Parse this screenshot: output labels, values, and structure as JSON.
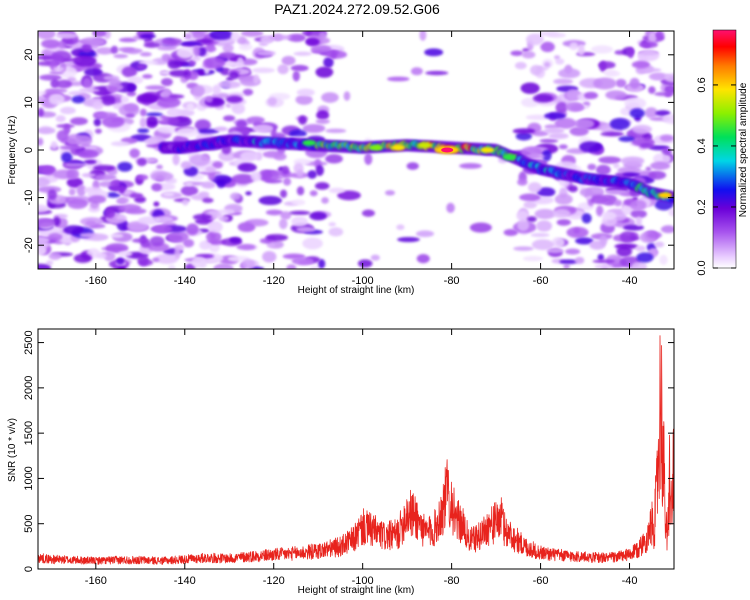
{
  "figure": {
    "title": "PAZ1.2024.272.09.52.G06"
  },
  "chart_data": [
    {
      "type": "heatmap",
      "xlabel": "Height of straight line (km)",
      "ylabel": "Frequency (Hz)",
      "xlim": [
        -173,
        -30
      ],
      "ylim": [
        -25,
        25
      ],
      "x_ticks": [
        -160,
        -140,
        -120,
        -100,
        -80,
        -60,
        -40
      ],
      "y_ticks": [
        -20,
        -10,
        0,
        10,
        20
      ],
      "colorbar": {
        "label": "Normalized spectral amplitude",
        "range": [
          0,
          0.78
        ],
        "ticks": [
          0.0,
          0.2,
          0.4,
          0.6
        ],
        "colormap": "rainbow (white-violet-blue-cyan-green-yellow-red-magenta)"
      },
      "ridge": {
        "description": "frequency of the dominant signal ridge vs height",
        "x": [
          -140,
          -130,
          -120,
          -110,
          -100,
          -90,
          -80,
          -70,
          -65,
          -60,
          -55,
          -50,
          -45,
          -40,
          -35,
          -30
        ],
        "y": [
          0.5,
          2,
          1.5,
          1,
          0.5,
          1,
          0.5,
          0,
          -2,
          -4,
          -5,
          -6,
          -6.5,
          -7,
          -9,
          -10
        ]
      },
      "peak_amplitude": {
        "x": -81,
        "y": 0,
        "value": 0.78
      }
    },
    {
      "type": "line",
      "xlabel": "Height of straight line (km)",
      "ylabel": "SNR (10 * v/v)",
      "xlim": [
        -173,
        -30
      ],
      "ylim": [
        0,
        2650
      ],
      "x_ticks": [
        -160,
        -140,
        -120,
        -100,
        -80,
        -60,
        -40
      ],
      "y_ticks": [
        0,
        500,
        1000,
        1500,
        2000,
        2500
      ],
      "color": "#e8231d",
      "series": [
        {
          "x": [
            -173,
            -170,
            -165,
            -160,
            -155,
            -150,
            -145,
            -140,
            -135,
            -130,
            -125,
            -120,
            -115,
            -110,
            -105,
            -102,
            -100,
            -98,
            -95,
            -92,
            -90,
            -88,
            -86,
            -84,
            -82,
            -81,
            -80,
            -79,
            -78,
            -76,
            -74,
            -72,
            -70,
            -69,
            -68,
            -66,
            -64,
            -62,
            -60,
            -58,
            -55,
            -50,
            -45,
            -42,
            -40,
            -38,
            -36,
            -35,
            -34,
            -33.5,
            -33,
            -32.5,
            -32,
            -31.5,
            -31,
            -30.5,
            -30
          ],
          "y": [
            150,
            130,
            120,
            110,
            120,
            120,
            110,
            130,
            150,
            140,
            170,
            190,
            210,
            240,
            300,
            400,
            560,
            520,
            430,
            470,
            760,
            700,
            480,
            520,
            800,
            1050,
            900,
            620,
            640,
            380,
            420,
            560,
            620,
            700,
            520,
            420,
            320,
            260,
            220,
            200,
            180,
            160,
            150,
            170,
            190,
            260,
            420,
            600,
            900,
            1800,
            2600,
            1800,
            900,
            300,
            1400,
            700,
            1900
          ]
        }
      ]
    }
  ]
}
